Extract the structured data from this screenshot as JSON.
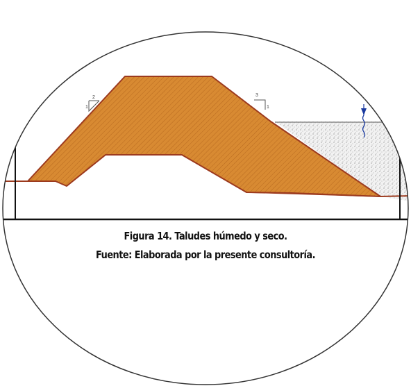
{
  "caption": {
    "title": "Figura 14. Taludes húmedo y seco.",
    "source": "Fuente: Elaborada por la presente consultoría."
  },
  "diagram": {
    "slope_markers": [
      {
        "side": "left",
        "horizontal": "2",
        "vertical": "1"
      },
      {
        "side": "right",
        "horizontal": "3",
        "vertical": "1"
      }
    ],
    "colors": {
      "embankment_fill": "#d88a32",
      "embankment_outline": "#9c3a1e",
      "water_fill": "#ececec",
      "water_line": "#8a8a8a",
      "water_symbol": "#1a3aa0",
      "frame": "#111111",
      "ellipse": "#333333"
    }
  }
}
